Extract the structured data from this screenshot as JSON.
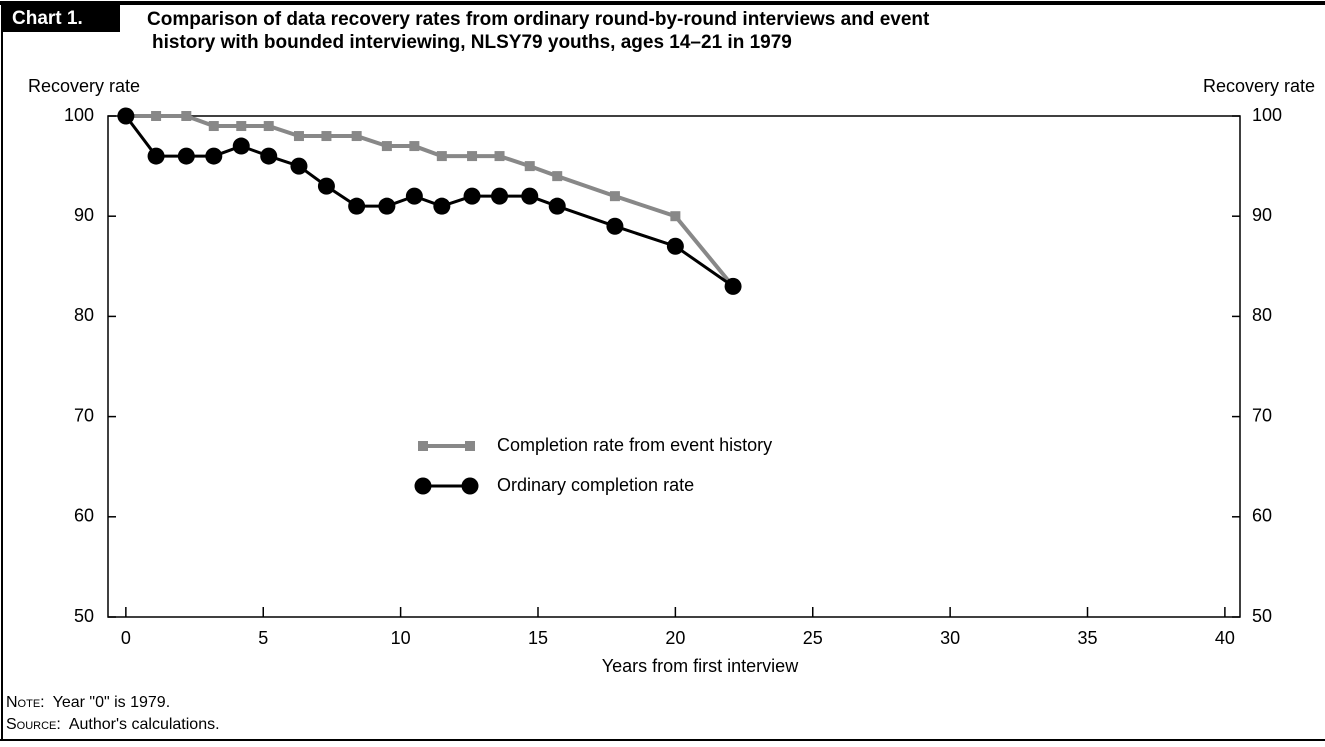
{
  "chart_data": {
    "type": "line",
    "label": "Chart 1.",
    "title": [
      "Comparison of data recovery rates from ordinary round-by-round interviews and event",
      "history with bounded interviewing, NLSY79 youths, ages 14–21 in 1979"
    ],
    "ylabel": "Recovery rate",
    "y2label": "Recovery rate",
    "xlabel": "Years from first interview",
    "x": [
      0,
      1.1,
      2.2,
      3.2,
      4.2,
      5.2,
      6.3,
      7.3,
      8.4,
      9.5,
      10.5,
      11.5,
      12.6,
      13.6,
      14.7,
      15.7,
      17.8,
      20,
      22.1
    ],
    "series": [
      {
        "name": "Completion rate from event history",
        "color": "#888888",
        "marker": "square",
        "values": [
          100,
          100,
          100,
          99,
          99,
          99,
          98,
          98,
          98,
          97,
          97,
          96,
          96,
          96,
          95,
          94,
          92,
          90,
          83
        ]
      },
      {
        "name": "Ordinary completion rate",
        "color": "#000000",
        "marker": "circle",
        "values": [
          100,
          96,
          96,
          96,
          97,
          96,
          95,
          93,
          91,
          91,
          92,
          91,
          92,
          92,
          92,
          91,
          89,
          87,
          83
        ]
      }
    ],
    "xlim": [
      -0.65,
      40.55
    ],
    "xticks": [
      0,
      5,
      10,
      15,
      20,
      25,
      30,
      35,
      40
    ],
    "ylim": [
      50,
      100
    ],
    "yticks": [
      50,
      60,
      70,
      80,
      90,
      100
    ],
    "y2lim": [
      50,
      100
    ],
    "y2ticks": [
      50,
      60,
      70,
      80,
      90,
      100
    ],
    "note": {
      "label": "Note:",
      "text": "Year \"0\" is 1979."
    },
    "source": {
      "label": "Source:",
      "text": "Author's calculations."
    }
  }
}
